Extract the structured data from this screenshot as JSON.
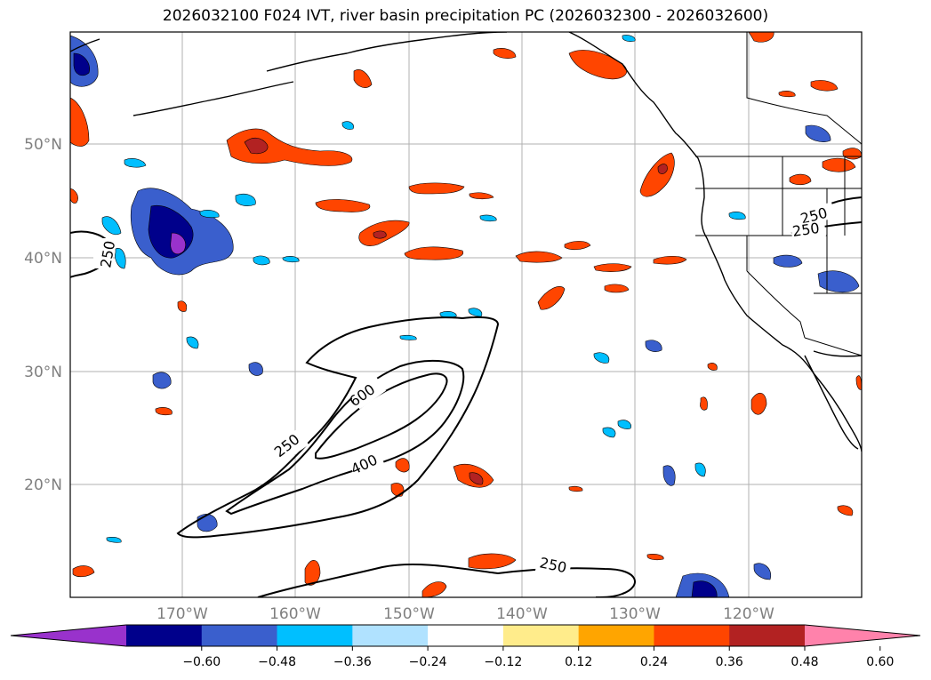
{
  "title": "2026032100 F024 IVT, river basin precipitation PC (2026032300 - 2026032600)",
  "lat_labels": [
    "50°N",
    "40°N",
    "30°N",
    "20°N"
  ],
  "lon_labels": [
    "170°W",
    "160°W",
    "150°W",
    "140°W",
    "130°W",
    "120°W"
  ],
  "colorbar": {
    "colors": [
      "#9932CC",
      "#00008B",
      "#3A5FCD",
      "#00BFFF",
      "#B0E2FF",
      "#FFFFFF",
      "#FFEC8B",
      "#FFA500",
      "#FF4500",
      "#B22222",
      "#FF82AB"
    ],
    "ticks": [
      "−0.60",
      "−0.48",
      "−0.36",
      "−0.24",
      "−0.12",
      "0.12",
      "0.24",
      "0.36",
      "0.48",
      "0.60"
    ]
  },
  "contour_labels": {
    "c250_west": "250",
    "c250_mid": "250",
    "c400": "400",
    "c600": "600",
    "c250_south": "250",
    "c250_ne1": "250",
    "c250_ne2": "250"
  }
}
